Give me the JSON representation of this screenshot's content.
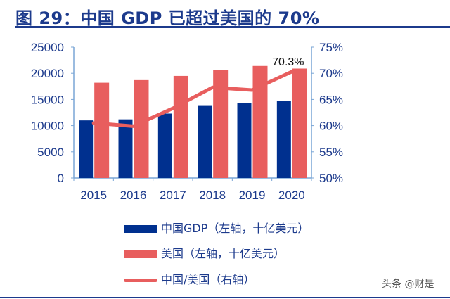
{
  "title": "图 29：中国 GDP 已超过美国的 70%",
  "watermark": "头条 @财是",
  "chart_data": {
    "type": "bar+line",
    "title": "图 29：中国 GDP 已超过美国的 70%",
    "categories": [
      "2015",
      "2016",
      "2017",
      "2018",
      "2019",
      "2020"
    ],
    "series": [
      {
        "name": "中国GDP（左轴，十亿美元）",
        "type": "bar",
        "axis": "left",
        "color": "#00308f",
        "values": [
          11000,
          11200,
          12300,
          13900,
          14300,
          14700
        ]
      },
      {
        "name": "美国（左轴，十亿美元）",
        "type": "bar",
        "axis": "left",
        "color": "#e85e5e",
        "values": [
          18200,
          18700,
          19500,
          20600,
          21400,
          20900
        ]
      },
      {
        "name": "中国/美国（右轴）",
        "type": "line",
        "axis": "right",
        "color": "#e85e5e",
        "values": [
          60.5,
          59.9,
          63.3,
          67.3,
          66.8,
          70.3
        ]
      }
    ],
    "left_axis": {
      "ylim": [
        0,
        25000
      ],
      "ticks": [
        "0",
        "5000",
        "10000",
        "15000",
        "20000",
        "25000"
      ]
    },
    "right_axis": {
      "ylim": [
        50,
        75
      ],
      "ticks": [
        "50%",
        "55%",
        "60%",
        "65%",
        "70%",
        "75%"
      ]
    },
    "annotations": [
      {
        "category": "2020",
        "text": "70.3%"
      }
    ],
    "legend_position": "bottom",
    "grid": false
  }
}
